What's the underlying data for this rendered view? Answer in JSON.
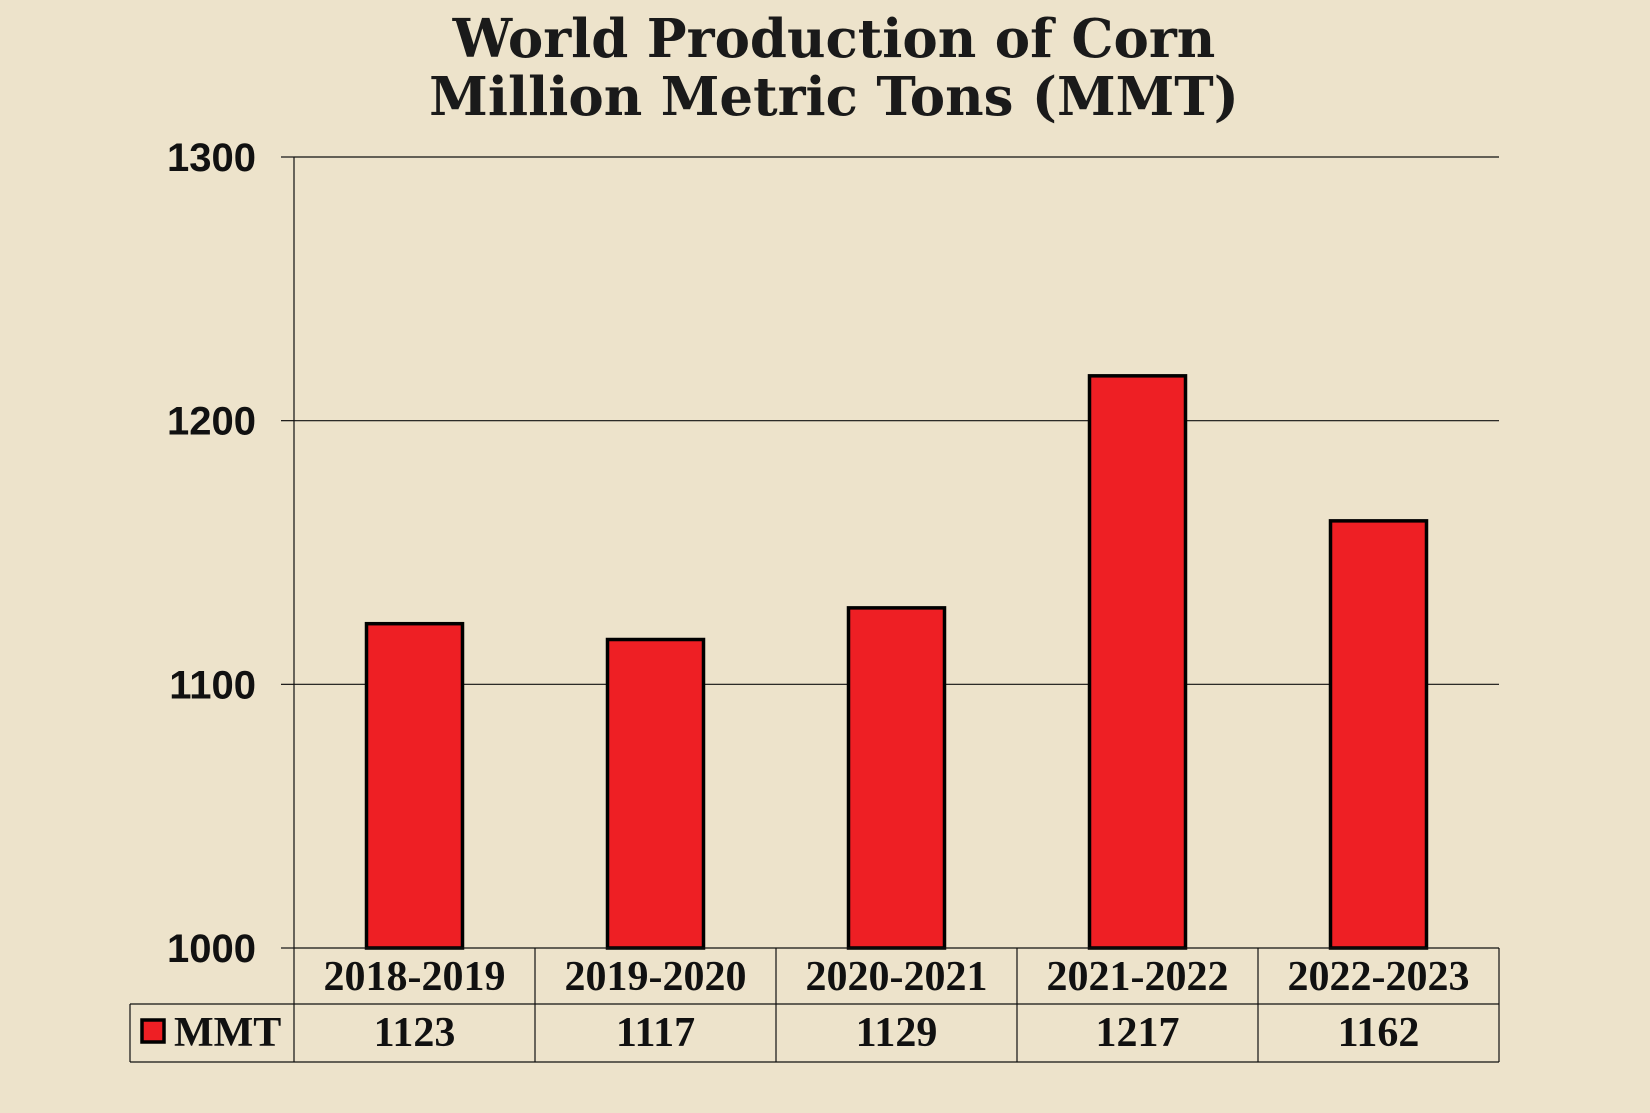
{
  "chart_data": {
    "type": "bar",
    "title": "World Production of Corn",
    "subtitle": "Million Metric Tons (MMT)",
    "categories": [
      "2018-2019",
      "2019-2020",
      "2020-2021",
      "2021-2022",
      "2022-2023"
    ],
    "series": [
      {
        "name": "MMT",
        "values": [
          1123,
          1117,
          1129,
          1217,
          1162
        ],
        "color": "#EE1F24"
      }
    ],
    "ylim": [
      1000,
      1300
    ],
    "yticks": [
      1000,
      1100,
      1200,
      1300
    ],
    "grid": true,
    "legend": "data-table-left"
  }
}
